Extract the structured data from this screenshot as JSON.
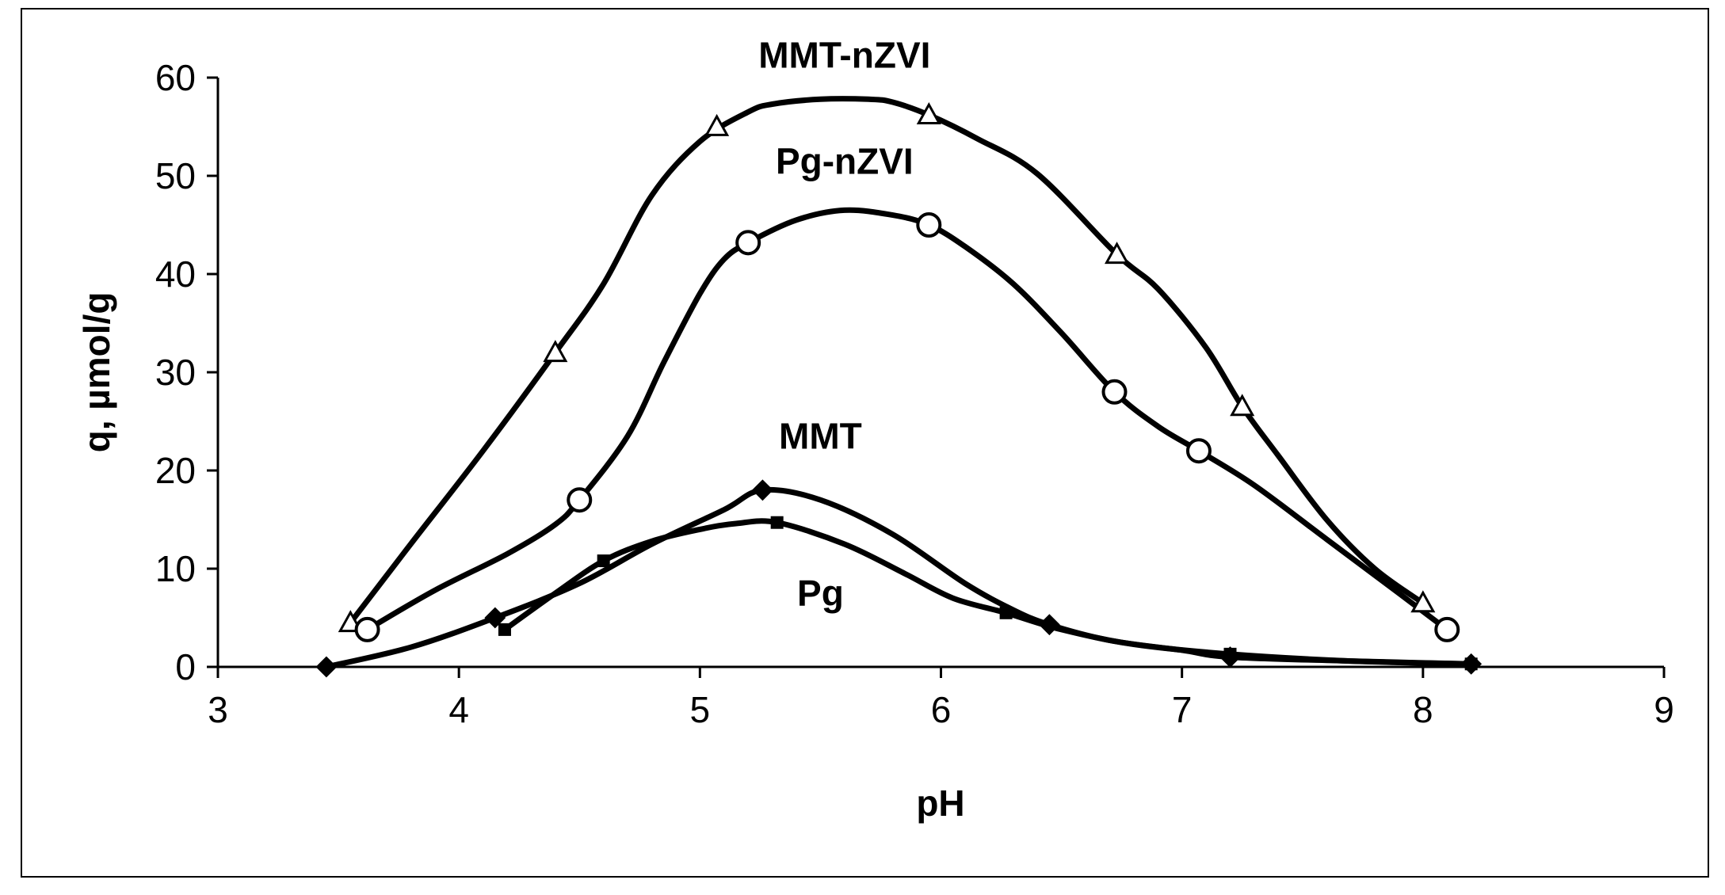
{
  "chart_data": {
    "type": "line",
    "xlabel": "pH",
    "ylabel": "q, µmol/g",
    "xlim": [
      3,
      9
    ],
    "ylim": [
      0,
      60
    ],
    "xticks": [
      "3",
      "4",
      "5",
      "6",
      "7",
      "8",
      "9"
    ],
    "yticks": [
      "0",
      "10",
      "20",
      "30",
      "40",
      "50",
      "60"
    ],
    "grid": false,
    "legend": "none",
    "series": [
      {
        "name": "MMT-nZVI",
        "marker": "triangle",
        "points": [
          [
            3.55,
            4.5
          ],
          [
            4.4,
            32
          ],
          [
            5.07,
            55
          ],
          [
            5.95,
            56.2
          ],
          [
            6.73,
            42
          ],
          [
            7.25,
            26.5
          ],
          [
            8.0,
            6.5
          ]
        ],
        "curve": [
          [
            3.55,
            4.5
          ],
          [
            3.8,
            12.5
          ],
          [
            4.1,
            22
          ],
          [
            4.4,
            32
          ],
          [
            4.6,
            39
          ],
          [
            4.8,
            48
          ],
          [
            5.0,
            53.5
          ],
          [
            5.2,
            56.5
          ],
          [
            5.3,
            57.3
          ],
          [
            5.5,
            57.8
          ],
          [
            5.7,
            57.8
          ],
          [
            5.8,
            57.5
          ],
          [
            5.95,
            56.2
          ],
          [
            6.15,
            53.8
          ],
          [
            6.4,
            50.2
          ],
          [
            6.73,
            42
          ],
          [
            6.9,
            38.5
          ],
          [
            7.1,
            32.5
          ],
          [
            7.25,
            26.5
          ],
          [
            7.4,
            21.5
          ],
          [
            7.6,
            15
          ],
          [
            7.8,
            10
          ],
          [
            8.0,
            6.5
          ]
        ]
      },
      {
        "name": "Pg-nZVI",
        "marker": "circle",
        "points": [
          [
            3.62,
            3.8
          ],
          [
            4.5,
            17
          ],
          [
            5.2,
            43.2
          ],
          [
            5.95,
            45
          ],
          [
            6.72,
            28
          ],
          [
            7.07,
            22
          ],
          [
            8.1,
            3.8
          ]
        ],
        "curve": [
          [
            3.62,
            3.8
          ],
          [
            3.9,
            7.8
          ],
          [
            4.2,
            11.5
          ],
          [
            4.4,
            14.5
          ],
          [
            4.5,
            17
          ],
          [
            4.7,
            23.5
          ],
          [
            4.85,
            31
          ],
          [
            5.0,
            38
          ],
          [
            5.1,
            41.5
          ],
          [
            5.2,
            43.2
          ],
          [
            5.4,
            45.5
          ],
          [
            5.6,
            46.5
          ],
          [
            5.8,
            46
          ],
          [
            5.95,
            45
          ],
          [
            6.1,
            42.8
          ],
          [
            6.3,
            39
          ],
          [
            6.5,
            34
          ],
          [
            6.72,
            28
          ],
          [
            6.9,
            24.5
          ],
          [
            7.07,
            22
          ],
          [
            7.3,
            18.5
          ],
          [
            7.6,
            13
          ],
          [
            7.9,
            7.5
          ],
          [
            8.1,
            3.8
          ]
        ]
      },
      {
        "name": "MMT",
        "marker": "diamond",
        "points": [
          [
            3.45,
            0
          ],
          [
            4.15,
            5
          ],
          [
            5.26,
            18
          ],
          [
            6.45,
            4.3
          ],
          [
            7.2,
            1
          ],
          [
            8.2,
            0.3
          ]
        ],
        "curve": [
          [
            3.45,
            0
          ],
          [
            3.8,
            2
          ],
          [
            4.15,
            5
          ],
          [
            4.5,
            8.5
          ],
          [
            4.8,
            12.5
          ],
          [
            5.1,
            16
          ],
          [
            5.26,
            18
          ],
          [
            5.5,
            17
          ],
          [
            5.8,
            13.5
          ],
          [
            6.1,
            8.5
          ],
          [
            6.3,
            5.8
          ],
          [
            6.45,
            4.3
          ],
          [
            6.7,
            2.7
          ],
          [
            7.0,
            1.7
          ],
          [
            7.2,
            1
          ],
          [
            7.7,
            0.6
          ],
          [
            8.2,
            0.3
          ]
        ]
      },
      {
        "name": "Pg",
        "marker": "square",
        "points": [
          [
            4.19,
            3.8
          ],
          [
            4.6,
            10.8
          ],
          [
            5.32,
            14.7
          ],
          [
            6.27,
            5.5
          ],
          [
            7.2,
            1.3
          ],
          [
            8.2,
            0.3
          ]
        ],
        "curve": [
          [
            4.19,
            3.8
          ],
          [
            4.4,
            7.5
          ],
          [
            4.6,
            10.8
          ],
          [
            4.8,
            12.8
          ],
          [
            5.0,
            14
          ],
          [
            5.15,
            14.6
          ],
          [
            5.32,
            14.7
          ],
          [
            5.6,
            12.5
          ],
          [
            5.85,
            9.5
          ],
          [
            6.05,
            7
          ],
          [
            6.27,
            5.5
          ],
          [
            6.5,
            3.8
          ],
          [
            6.8,
            2.3
          ],
          [
            7.2,
            1.3
          ],
          [
            7.7,
            0.6
          ],
          [
            8.2,
            0.3
          ]
        ]
      }
    ],
    "annotations": [
      {
        "text": "MMT-nZVI",
        "x": 5.6,
        "y": 62.3
      },
      {
        "text": "Pg-nZVI",
        "x": 5.6,
        "y": 51.5
      },
      {
        "text": "MMT",
        "x": 5.5,
        "y": 23.5
      },
      {
        "text": "Pg",
        "x": 5.5,
        "y": 7.5
      }
    ]
  }
}
